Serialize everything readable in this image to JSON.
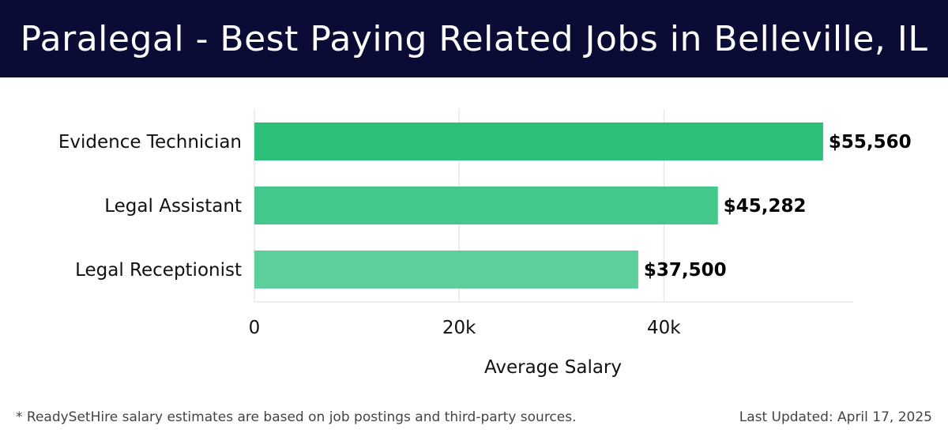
{
  "header": {
    "title": "Paralegal - Best Paying Related Jobs in Belleville, IL"
  },
  "chart_data": {
    "type": "bar",
    "orientation": "horizontal",
    "categories": [
      "Evidence Technician",
      "Legal Assistant",
      "Legal Receptionist"
    ],
    "values": [
      55560,
      45282,
      37500
    ],
    "data_labels": [
      "$55,560",
      "$45,282",
      "$37,500"
    ],
    "xlabel": "Average Salary",
    "ylabel": "",
    "xlim": [
      0,
      58500
    ],
    "xticks": [
      0,
      20000,
      40000
    ],
    "xtick_labels": [
      "0",
      "20k",
      "40k"
    ],
    "grid": true,
    "colors": [
      "#2bbf78",
      "#44c78a",
      "#5ccf9a"
    ]
  },
  "footer": {
    "note": "* ReadySetHire salary estimates are based on job postings and third-party sources.",
    "updated": "Last Updated: April 17, 2025"
  }
}
